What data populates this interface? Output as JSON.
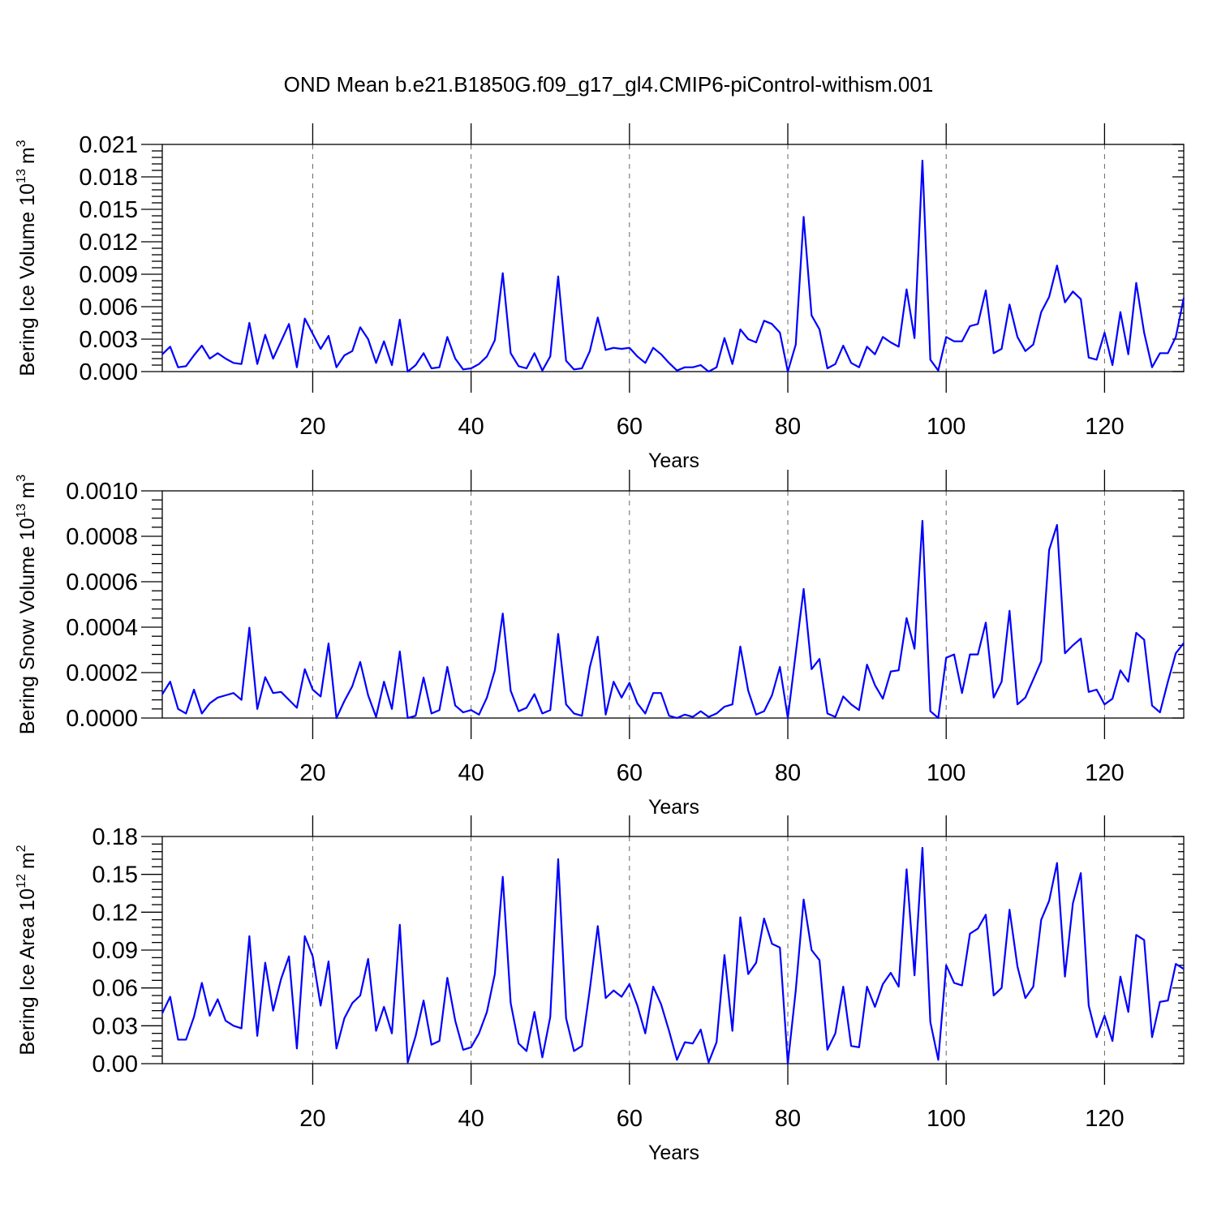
{
  "figure": {
    "title": "OND Mean b.e21.B1850G.f09_g17_gl4.CMIP6-piControl-withism.001"
  },
  "chart_data": [
    {
      "type": "line",
      "title": "OND Mean b.e21.B1850G.f09_g17_gl4.CMIP6-piControl-withism.001",
      "xlabel": "Years",
      "ylabel_text": "Bering Ice Volume 10",
      "ylabel_exp": "13",
      "ylabel_unit": "m",
      "ylabel_unit_exp": "3",
      "xlim": [
        1,
        130
      ],
      "ylim": [
        0,
        0.021
      ],
      "xticks": [
        20,
        40,
        60,
        80,
        100,
        120
      ],
      "yticks": [
        0,
        0.003,
        0.006,
        0.009,
        0.012,
        0.015,
        0.018,
        0.021
      ],
      "ytick_labels": [
        "0.000",
        "0.003",
        "0.006",
        "0.009",
        "0.012",
        "0.015",
        "0.018",
        "0.021"
      ],
      "grid": "vertical dashed",
      "color": "#0000ff",
      "series": [
        {
          "x_start": 1,
          "values": [
            0.0016,
            0.0023,
            0.0004,
            0.0005,
            0.0015,
            0.0024,
            0.0012,
            0.0017,
            0.0012,
            0.0008,
            0.0007,
            0.0045,
            0.0007,
            0.0034,
            0.0012,
            0.0028,
            0.0044,
            0.0004,
            0.0049,
            0.0035,
            0.0021,
            0.0033,
            0.0004,
            0.0015,
            0.0019,
            0.0041,
            0.003,
            0.0008,
            0.0028,
            0.0006,
            0.0048,
            0.0,
            0.0006,
            0.0017,
            0.0003,
            0.0004,
            0.0032,
            0.0012,
            0.0002,
            0.0003,
            0.0007,
            0.0014,
            0.0029,
            0.0091,
            0.0017,
            0.0005,
            0.0003,
            0.0017,
            0.0001,
            0.0014,
            0.0088,
            0.001,
            0.0002,
            0.0003,
            0.0019,
            0.005,
            0.002,
            0.0022,
            0.0021,
            0.0022,
            0.0014,
            0.0008,
            0.0022,
            0.0016,
            0.0008,
            0.0001,
            0.0004,
            0.0004,
            0.0006,
            0.0,
            0.0004,
            0.0031,
            0.0007,
            0.0039,
            0.003,
            0.0027,
            0.0047,
            0.0044,
            0.0036,
            0.0,
            0.0025,
            0.0143,
            0.0052,
            0.0039,
            0.0003,
            0.0007,
            0.0024,
            0.0008,
            0.0004,
            0.0023,
            0.0016,
            0.0032,
            0.0027,
            0.0023,
            0.0076,
            0.0031,
            0.0195,
            0.0011,
            0.0001,
            0.0032,
            0.0028,
            0.0028,
            0.0042,
            0.0044,
            0.0075,
            0.0017,
            0.0021,
            0.0062,
            0.0032,
            0.0019,
            0.0025,
            0.0055,
            0.0069,
            0.0098,
            0.0064,
            0.0074,
            0.0067,
            0.0013,
            0.0011,
            0.0036,
            0.0006,
            0.0055,
            0.0016,
            0.0082,
            0.0036,
            0.0004,
            0.0017,
            0.0017,
            0.0032,
            0.0068
          ]
        }
      ]
    },
    {
      "type": "line",
      "xlabel": "Years",
      "ylabel_text": "Bering Snow Volume 10",
      "ylabel_exp": "13",
      "ylabel_unit": "m",
      "ylabel_unit_exp": "3",
      "xlim": [
        1,
        130
      ],
      "ylim": [
        0,
        0.001
      ],
      "xticks": [
        20,
        40,
        60,
        80,
        100,
        120
      ],
      "yticks": [
        0,
        0.0002,
        0.0004,
        0.0006,
        0.0008,
        0.001
      ],
      "ytick_labels": [
        "0.0000",
        "0.0002",
        "0.0004",
        "0.0006",
        "0.0008",
        "0.0010"
      ],
      "grid": "vertical dashed",
      "color": "#0000ff",
      "series": [
        {
          "x_start": 1,
          "values": [
            0.000105,
            0.00016,
            4e-05,
            2e-05,
            0.000125,
            2e-05,
            6.5e-05,
            9e-05,
            0.0001,
            0.00011,
            8e-05,
            0.000398,
            4e-05,
            0.00018,
            0.00011,
            0.000115,
            8e-05,
            4.5e-05,
            0.000215,
            0.000125,
            9.5e-05,
            0.000328,
            0.0,
            7.5e-05,
            0.00014,
            0.000247,
            0.0001,
            5e-06,
            0.00016,
            4e-05,
            0.000293,
            0.0,
            1e-05,
            0.000178,
            2e-05,
            3.5e-05,
            0.000225,
            5.5e-05,
            2.5e-05,
            3.5e-05,
            1.5e-05,
            9e-05,
            0.00021,
            0.00046,
            0.00012,
            3e-05,
            4.5e-05,
            0.000105,
            2e-05,
            3.5e-05,
            0.00037,
            6e-05,
            2e-05,
            1e-05,
            0.000225,
            0.000358,
            1.5e-05,
            0.00016,
            9e-05,
            0.000155,
            6.5e-05,
            2e-05,
            0.00011,
            0.00011,
            1e-05,
            0.0,
            1.5e-05,
            5e-06,
            3e-05,
            5e-06,
            2e-05,
            5e-05,
            6e-05,
            0.000315,
            0.00012,
            1.5e-05,
            3e-05,
            0.0001,
            0.000225,
            0.0,
            0.000285,
            0.000568,
            0.000215,
            0.00026,
            2e-05,
            5e-06,
            9.5e-05,
            6e-05,
            3.5e-05,
            0.000235,
            0.000145,
            8.5e-05,
            0.000205,
            0.00021,
            0.00044,
            0.000305,
            0.000868,
            3e-05,
            0.0,
            0.000265,
            0.00028,
            0.00011,
            0.00028,
            0.00028,
            0.00042,
            9e-05,
            0.00016,
            0.000472,
            6e-05,
            9e-05,
            0.00017,
            0.00025,
            0.00074,
            0.00085,
            0.000285,
            0.00032,
            0.00035,
            0.000115,
            0.000125,
            6e-05,
            8.5e-05,
            0.00021,
            0.00016,
            0.000375,
            0.000345,
            5.5e-05,
            2.5e-05,
            0.00016,
            0.000285,
            0.00033
          ]
        }
      ]
    },
    {
      "type": "line",
      "xlabel": "Years",
      "ylabel_text": "Bering Ice Area 10",
      "ylabel_exp": "12",
      "ylabel_unit": "m",
      "ylabel_unit_exp": "2",
      "xlim": [
        1,
        130
      ],
      "ylim": [
        0,
        0.18
      ],
      "xticks": [
        20,
        40,
        60,
        80,
        100,
        120
      ],
      "yticks": [
        0,
        0.03,
        0.06,
        0.09,
        0.12,
        0.15,
        0.18
      ],
      "ytick_labels": [
        "0.00",
        "0.03",
        "0.06",
        "0.09",
        "0.12",
        "0.15",
        "0.18"
      ],
      "grid": "vertical dashed",
      "color": "#0000ff",
      "series": [
        {
          "x_start": 1,
          "values": [
            0.04,
            0.053,
            0.019,
            0.019,
            0.037,
            0.064,
            0.038,
            0.051,
            0.034,
            0.03,
            0.028,
            0.101,
            0.022,
            0.08,
            0.042,
            0.067,
            0.085,
            0.012,
            0.101,
            0.085,
            0.046,
            0.081,
            0.012,
            0.036,
            0.048,
            0.054,
            0.083,
            0.026,
            0.045,
            0.024,
            0.11,
            0.001,
            0.022,
            0.05,
            0.015,
            0.018,
            0.068,
            0.034,
            0.011,
            0.013,
            0.024,
            0.041,
            0.071,
            0.148,
            0.048,
            0.016,
            0.01,
            0.041,
            0.005,
            0.037,
            0.162,
            0.036,
            0.01,
            0.014,
            0.059,
            0.109,
            0.052,
            0.058,
            0.053,
            0.063,
            0.046,
            0.024,
            0.061,
            0.047,
            0.026,
            0.003,
            0.017,
            0.016,
            0.027,
            0.001,
            0.017,
            0.086,
            0.026,
            0.116,
            0.071,
            0.08,
            0.115,
            0.095,
            0.092,
            0.0,
            0.058,
            0.13,
            0.09,
            0.082,
            0.011,
            0.024,
            0.061,
            0.014,
            0.013,
            0.061,
            0.045,
            0.063,
            0.072,
            0.061,
            0.154,
            0.07,
            0.171,
            0.033,
            0.003,
            0.078,
            0.064,
            0.062,
            0.103,
            0.107,
            0.118,
            0.054,
            0.06,
            0.122,
            0.077,
            0.052,
            0.061,
            0.114,
            0.129,
            0.159,
            0.069,
            0.127,
            0.151,
            0.046,
            0.021,
            0.038,
            0.018,
            0.069,
            0.041,
            0.102,
            0.098,
            0.021,
            0.049,
            0.05,
            0.079,
            0.075
          ]
        }
      ]
    }
  ]
}
